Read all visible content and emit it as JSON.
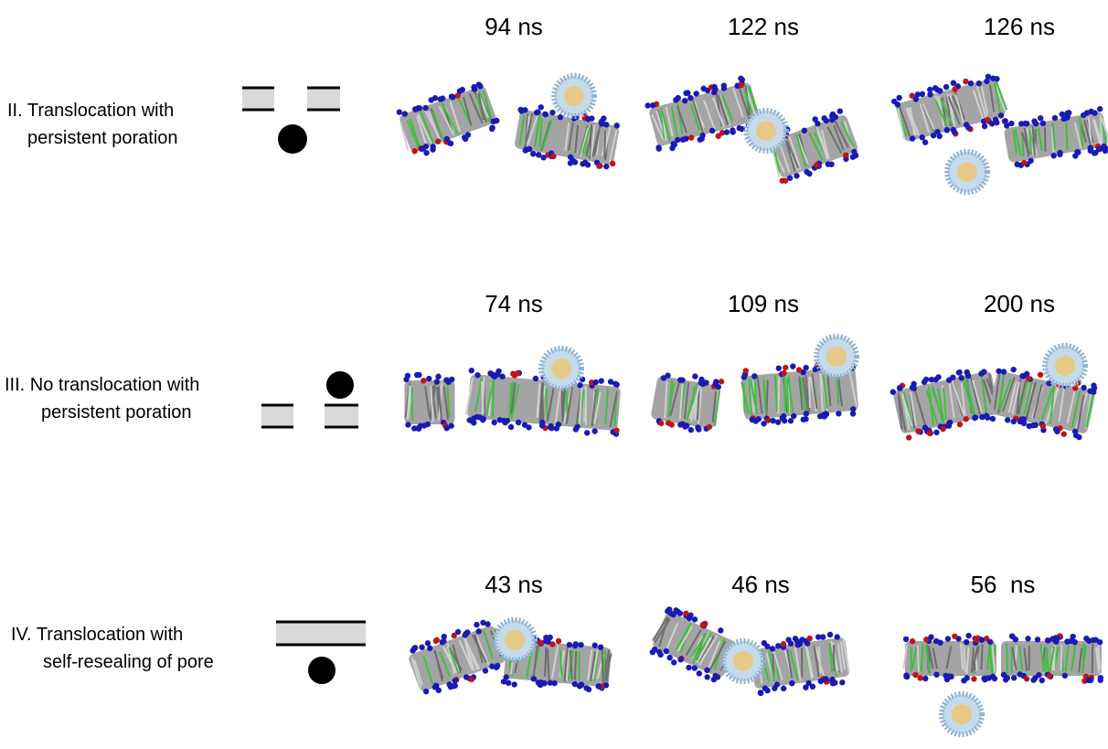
{
  "rows": [
    {
      "label": [
        "II. Translocation with",
        "persistent poration"
      ],
      "times": [
        "94 ns",
        "122 ns",
        "126 ns"
      ]
    },
    {
      "label": [
        "III. No translocation with",
        "persistent poration"
      ],
      "times": [
        "74 ns",
        "109 ns",
        "200 ns"
      ]
    },
    {
      "label": [
        "IV. Translocation with",
        "self-resealing of pore"
      ],
      "times": [
        "43 ns",
        "46 ns",
        "56  ns"
      ]
    }
  ]
}
